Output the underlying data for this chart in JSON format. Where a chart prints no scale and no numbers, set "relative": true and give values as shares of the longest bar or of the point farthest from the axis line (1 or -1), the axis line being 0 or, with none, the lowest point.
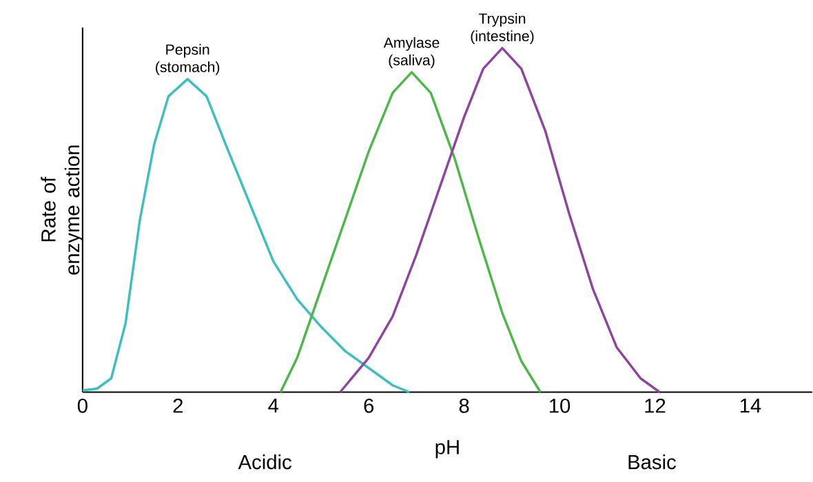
{
  "chart_data": {
    "type": "line",
    "relative": true,
    "xlabel": "pH",
    "ylabel": "Rate of enzyme action",
    "xlim": [
      0,
      15.3
    ],
    "xticks": [
      0,
      2,
      4,
      6,
      8,
      10,
      12,
      14
    ],
    "annotations": [
      "Acidic",
      "Basic"
    ],
    "series": [
      {
        "name": "Pepsin (stomach)",
        "color": "#3bbfc1",
        "x": [
          0,
          0.3,
          0.6,
          0.9,
          1.2,
          1.5,
          1.8,
          2.2,
          2.6,
          3,
          3.5,
          4,
          4.5,
          5,
          5.5,
          6,
          6.5,
          6.85
        ],
        "values": [
          0.005,
          0.01,
          0.04,
          0.2,
          0.5,
          0.72,
          0.86,
          0.91,
          0.86,
          0.72,
          0.55,
          0.38,
          0.27,
          0.19,
          0.12,
          0.07,
          0.02,
          0
        ]
      },
      {
        "name": "Amylase (saliva)",
        "color": "#4cb848",
        "x": [
          4.15,
          4.5,
          5,
          5.5,
          6,
          6.5,
          6.9,
          7.3,
          7.8,
          8.3,
          8.8,
          9.2,
          9.6
        ],
        "values": [
          0,
          0.1,
          0.3,
          0.5,
          0.7,
          0.87,
          0.93,
          0.87,
          0.68,
          0.45,
          0.23,
          0.09,
          0
        ]
      },
      {
        "name": "Trypsin (intestine)",
        "color": "#8e44a0",
        "x": [
          5.4,
          6,
          6.5,
          7,
          7.5,
          8,
          8.4,
          8.8,
          9.2,
          9.7,
          10.2,
          10.7,
          11.2,
          11.7,
          12.1
        ],
        "values": [
          0,
          0.1,
          0.22,
          0.4,
          0.6,
          0.8,
          0.94,
          1,
          0.94,
          0.76,
          0.52,
          0.3,
          0.13,
          0.04,
          0
        ]
      }
    ]
  }
}
